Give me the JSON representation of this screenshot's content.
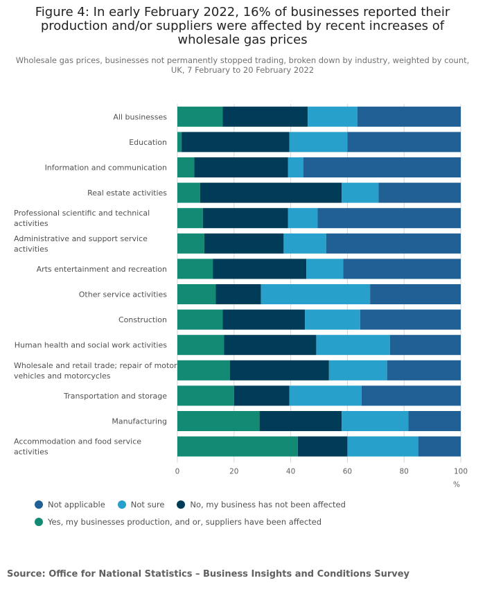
{
  "title": "Figure 4: In early February 2022, 16% of businesses reported their production and/or suppliers were affected by recent increases of wholesale gas prices",
  "subtitle": "Wholesale gas prices, businesses not permanently stopped trading, broken down by industry, weighted by count, UK, 7 February to 20 February 2022",
  "source": "Source: Office for National Statistics – Business Insights and Conditions Survey",
  "chart_data": {
    "type": "bar",
    "orientation": "horizontal",
    "stacked": true,
    "title": "Figure 4: In early February 2022, 16% of businesses reported their production and/or suppliers were affected by recent increases of wholesale gas prices",
    "xlabel": "%",
    "ylabel": "",
    "xlim": [
      0,
      100
    ],
    "xticks": [
      0,
      20,
      40,
      60,
      80,
      100
    ],
    "legend_position": "bottom",
    "categories": [
      "All businesses",
      "Education",
      "Information and communication",
      "Real estate activities",
      "Professional scientific and technical activities",
      "Administrative and support service activities",
      "Arts entertainment and recreation",
      "Other service activities",
      "Construction",
      "Human health and social work activities",
      "Wholesale and retail trade; repair of motor vehicles and motorcycles",
      "Transportation and storage",
      "Manufacturing",
      "Accommodation and food service activities"
    ],
    "category_lines": [
      [
        "All businesses"
      ],
      [
        "Education"
      ],
      [
        "Information and communication"
      ],
      [
        "Real estate activities"
      ],
      [
        "Professional scientific and technical",
        "activities"
      ],
      [
        "Administrative and support service",
        "activities"
      ],
      [
        "Arts entertainment and recreation"
      ],
      [
        "Other service activities"
      ],
      [
        "Construction"
      ],
      [
        "Human health and social work activities"
      ],
      [
        "Wholesale and retail trade; repair of motor",
        "vehicles and motorcycles"
      ],
      [
        "Transportation and storage"
      ],
      [
        "Manufacturing"
      ],
      [
        "Accommodation and food service",
        "activities"
      ]
    ],
    "series": [
      {
        "name": "Yes, my businesses production, and or, suppliers have been affected",
        "color": "#138b74",
        "values": [
          16,
          1.5,
          6,
          8,
          9,
          9.5,
          12.5,
          13.5,
          16,
          16.5,
          18.5,
          20,
          29,
          42.5
        ]
      },
      {
        "name": "No, my business has not been affected",
        "color": "#003c57",
        "values": [
          30,
          38,
          33,
          50,
          30,
          28,
          33,
          16,
          29,
          32.5,
          35,
          19.5,
          29,
          17.5
        ]
      },
      {
        "name": "Not sure",
        "color": "#27a0cc",
        "values": [
          17.5,
          20.5,
          5.5,
          13,
          10.5,
          15,
          13,
          38.5,
          19.5,
          26,
          20.5,
          25.5,
          23.5,
          25
        ]
      },
      {
        "name": "Not applicable",
        "color": "#206095",
        "values": [
          36.5,
          40,
          55.5,
          29,
          50.5,
          47.5,
          41.5,
          32,
          35.5,
          25,
          26,
          35,
          18.5,
          15
        ]
      }
    ],
    "legend_order": [
      3,
      2,
      1,
      0
    ]
  }
}
